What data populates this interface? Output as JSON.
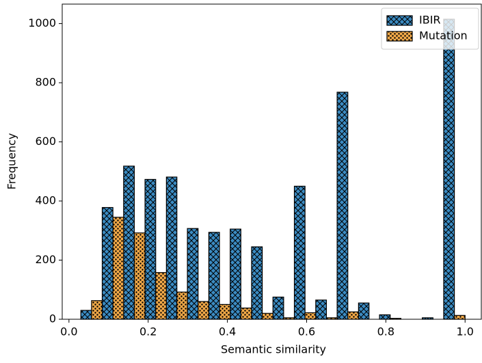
{
  "chart_data": {
    "type": "histogram",
    "xlabel": "Semantic similarity",
    "ylabel": "Frequency",
    "bins": [
      0.03,
      0.084,
      0.138,
      0.192,
      0.246,
      0.299,
      0.353,
      0.407,
      0.461,
      0.515,
      0.569,
      0.623,
      0.677,
      0.731,
      0.784,
      0.838,
      0.892,
      0.946,
      1.0
    ],
    "series": [
      {
        "name": "IBIR",
        "color": "#3b8bc2",
        "hatch": "xx",
        "values": [
          30,
          378,
          518,
          473,
          481,
          307,
          294,
          305,
          245,
          75,
          450,
          65,
          768,
          55,
          15,
          0,
          5,
          1015
        ]
      },
      {
        "name": "Mutation",
        "color": "#f0a848",
        "hatch": "oo",
        "values": [
          63,
          345,
          292,
          158,
          92,
          60,
          50,
          38,
          20,
          5,
          22,
          5,
          25,
          0,
          3,
          0,
          0,
          13
        ]
      }
    ],
    "xlim": [
      -0.017,
      1.041
    ],
    "ylim": [
      0,
      1066
    ],
    "xticks": [
      {
        "value": 0,
        "label": "0.0"
      },
      0.2,
      0.4,
      0.6,
      0.8,
      {
        "value": 1,
        "label": "1.0"
      }
    ],
    "yticks": [
      0,
      200,
      400,
      600,
      800,
      1000
    ],
    "legend": "upper right"
  }
}
